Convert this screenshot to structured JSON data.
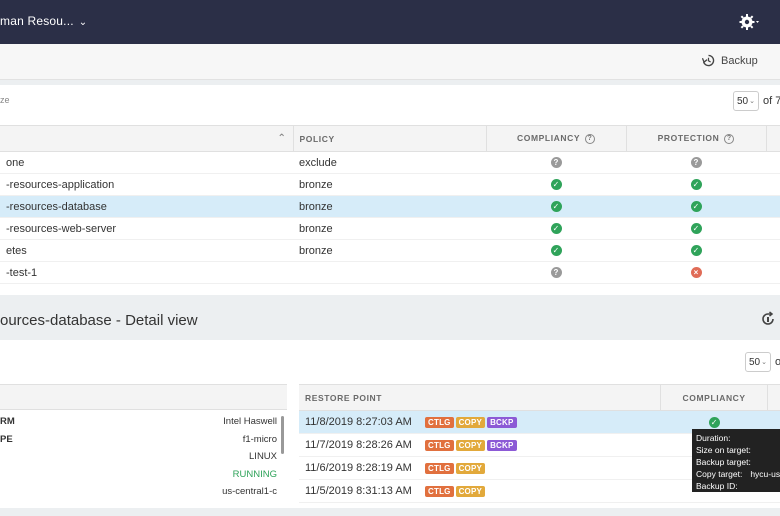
{
  "header": {
    "title": "man Resou...",
    "settings_icon": "gear-icon"
  },
  "toolbar": {
    "backup_label": "Backup",
    "more_label": "⋮"
  },
  "top_panel": {
    "filter_text": "ze",
    "page_size": "50",
    "page_of": "of 7",
    "columns": {
      "name": "",
      "policy": "POLICY",
      "compliancy": "COMPLIANCY",
      "protection": "PROTECTION"
    },
    "rows": [
      {
        "name": "one",
        "policy": "exclude",
        "compliancy": "unknown",
        "protection": "unknown",
        "selected": false
      },
      {
        "name": "-resources-application",
        "policy": "bronze",
        "compliancy": "ok",
        "protection": "ok",
        "selected": false
      },
      {
        "name": "-resources-database",
        "policy": "bronze",
        "compliancy": "ok",
        "protection": "ok",
        "selected": true
      },
      {
        "name": "-resources-web-server",
        "policy": "bronze",
        "compliancy": "ok",
        "protection": "ok",
        "selected": false
      },
      {
        "name": "etes",
        "policy": "bronze",
        "compliancy": "ok",
        "protection": "ok",
        "selected": false
      },
      {
        "name": "-test-1",
        "policy": "",
        "compliancy": "unknown",
        "protection": "error",
        "selected": false
      }
    ]
  },
  "detail": {
    "title": "ources-database - Detail view",
    "page_size": "50",
    "page_of": "of",
    "properties": [
      {
        "key": "RM",
        "value": "Intel Haswell"
      },
      {
        "key": "PE",
        "value": "f1-micro"
      },
      {
        "key": "",
        "value": "LINUX"
      },
      {
        "key": "",
        "value": "RUNNING"
      },
      {
        "key": "",
        "value": "us-central1-c"
      }
    ],
    "restore_columns": {
      "restore_point": "RESTORE POINT",
      "compliancy": "COMPLIANCY"
    },
    "restore_points": [
      {
        "time": "11/8/2019 8:27:03 AM",
        "tags": [
          "CTLG",
          "COPY",
          "BCKP"
        ],
        "compliancy": "ok",
        "selected": true
      },
      {
        "time": "11/7/2019 8:28:26 AM",
        "tags": [
          "CTLG",
          "COPY",
          "BCKP"
        ],
        "compliancy": "",
        "selected": false
      },
      {
        "time": "11/6/2019 8:28:19 AM",
        "tags": [
          "CTLG",
          "COPY"
        ],
        "compliancy": "",
        "selected": false
      },
      {
        "time": "11/5/2019 8:31:13 AM",
        "tags": [
          "CTLG",
          "COPY"
        ],
        "compliancy": "",
        "selected": false
      }
    ]
  },
  "tooltip": {
    "duration": "Duration:",
    "size": "Size on target:",
    "backup_target": "Backup target:",
    "copy_target_label": "Copy target:",
    "copy_target_value": "hycu-us-c",
    "backup_id": "Backup ID:"
  },
  "colors": {
    "nav_bg": "#2b2f47",
    "ok": "#2fa35a",
    "error": "#e06c57",
    "unknown": "#9a9a9a",
    "selected_row": "#d6ecf9",
    "running": "#2fa35a"
  }
}
